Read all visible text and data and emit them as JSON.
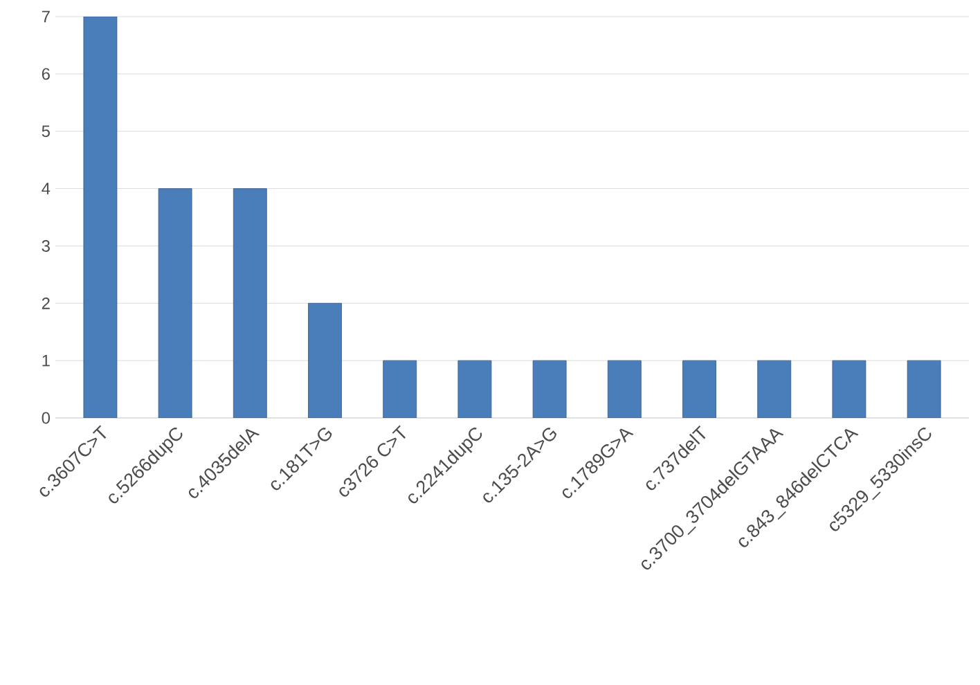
{
  "chart_data": {
    "type": "bar",
    "categories": [
      "c.3607C>T",
      "c.5266dupC",
      "c.4035delA",
      "c.181T>G",
      "c3726 C>T",
      "c.2241dupC",
      "c.135-2A>G",
      "c.1789G>A",
      "c.737delT",
      "c.3700_3704delGTAAA",
      "c.843_846delCTCA",
      "c5329_5330insC"
    ],
    "values": [
      7,
      4,
      4,
      2,
      1,
      1,
      1,
      1,
      1,
      1,
      1,
      1
    ],
    "color": "#4a7ebb",
    "ylim": [
      0,
      7
    ],
    "yticks": [
      0,
      1,
      2,
      3,
      4,
      5,
      6,
      7
    ],
    "grid": "y"
  }
}
